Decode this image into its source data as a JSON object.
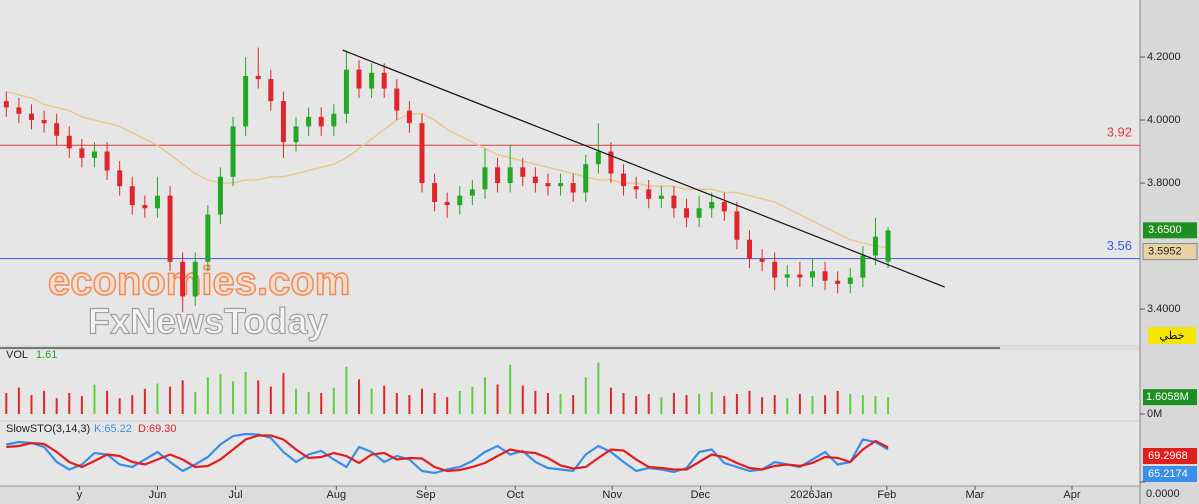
{
  "chart_data": [
    {
      "type": "candlestick",
      "watermark": [
        "economies.com",
        "FxNewsToday"
      ],
      "badge": "خطي",
      "up_color": "#22a822",
      "down_color": "#e0242a",
      "open": [
        4.06,
        4.04,
        4.02,
        4.0,
        3.99,
        3.95,
        3.91,
        3.88,
        3.9,
        3.84,
        3.79,
        3.73,
        3.72,
        3.76,
        3.55,
        3.44,
        3.55,
        3.7,
        3.82,
        3.98,
        4.14,
        4.13,
        4.06,
        3.93,
        3.98,
        4.01,
        3.98,
        4.02,
        4.16,
        4.1,
        4.15,
        4.1,
        4.03,
        3.99,
        3.8,
        3.74,
        3.73,
        3.76,
        3.78,
        3.85,
        3.8,
        3.85,
        3.82,
        3.8,
        3.79,
        3.8,
        3.77,
        3.86,
        3.9,
        3.83,
        3.79,
        3.78,
        3.75,
        3.76,
        3.72,
        3.69,
        3.72,
        3.74,
        3.71,
        3.62,
        3.56,
        3.55,
        3.5,
        3.51,
        3.5,
        3.52,
        3.49,
        3.48,
        3.5,
        3.57,
        3.55
      ],
      "high": [
        4.09,
        4.07,
        4.05,
        4.03,
        4.02,
        3.98,
        3.94,
        3.93,
        3.93,
        3.87,
        3.82,
        3.76,
        3.82,
        3.79,
        3.58,
        3.58,
        3.73,
        3.85,
        4.01,
        4.2,
        4.23,
        4.16,
        4.09,
        4.01,
        4.04,
        4.04,
        4.05,
        4.22,
        4.19,
        4.18,
        4.18,
        4.13,
        4.06,
        4.02,
        3.83,
        3.77,
        3.79,
        3.81,
        3.91,
        3.88,
        3.92,
        3.88,
        3.85,
        3.83,
        3.83,
        3.83,
        3.89,
        3.99,
        3.93,
        3.86,
        3.82,
        3.81,
        3.79,
        3.79,
        3.75,
        3.76,
        3.77,
        3.77,
        3.74,
        3.65,
        3.59,
        3.58,
        3.54,
        3.55,
        3.56,
        3.55,
        3.52,
        3.53,
        3.6,
        3.69,
        3.66
      ],
      "low": [
        4.01,
        3.99,
        3.97,
        3.96,
        3.92,
        3.88,
        3.85,
        3.85,
        3.81,
        3.76,
        3.7,
        3.69,
        3.69,
        3.52,
        3.39,
        3.41,
        3.52,
        3.67,
        3.79,
        3.95,
        4.1,
        4.03,
        3.88,
        3.9,
        3.95,
        3.95,
        3.95,
        3.99,
        4.07,
        4.07,
        4.07,
        4.0,
        3.96,
        3.77,
        3.71,
        3.69,
        3.7,
        3.73,
        3.75,
        3.77,
        3.77,
        3.79,
        3.77,
        3.76,
        3.76,
        3.74,
        3.74,
        3.83,
        3.8,
        3.76,
        3.75,
        3.72,
        3.72,
        3.69,
        3.66,
        3.66,
        3.69,
        3.68,
        3.59,
        3.53,
        3.52,
        3.46,
        3.47,
        3.47,
        3.47,
        3.46,
        3.45,
        3.45,
        3.47,
        3.54,
        3.53
      ],
      "close": [
        4.04,
        4.02,
        4.0,
        3.99,
        3.95,
        3.91,
        3.88,
        3.9,
        3.84,
        3.79,
        3.73,
        3.72,
        3.76,
        3.55,
        3.44,
        3.55,
        3.7,
        3.82,
        3.98,
        4.14,
        4.13,
        4.06,
        3.93,
        3.98,
        4.01,
        3.98,
        4.02,
        4.16,
        4.1,
        4.15,
        4.1,
        4.03,
        3.99,
        3.8,
        3.74,
        3.73,
        3.76,
        3.78,
        3.85,
        3.8,
        3.85,
        3.82,
        3.8,
        3.79,
        3.8,
        3.77,
        3.86,
        3.9,
        3.83,
        3.79,
        3.78,
        3.75,
        3.76,
        3.72,
        3.69,
        3.72,
        3.74,
        3.71,
        3.62,
        3.56,
        3.55,
        3.5,
        3.51,
        3.5,
        3.52,
        3.49,
        3.48,
        3.5,
        3.57,
        3.63,
        3.65
      ],
      "last_label": "3.6500",
      "ma": {
        "color": "#e8c88e",
        "values": [
          4.09,
          4.08,
          4.07,
          4.05,
          4.04,
          4.03,
          4.01,
          4.0,
          3.99,
          3.98,
          3.96,
          3.94,
          3.92,
          3.89,
          3.86,
          3.83,
          3.81,
          3.8,
          3.8,
          3.81,
          3.81,
          3.82,
          3.82,
          3.83,
          3.84,
          3.85,
          3.86,
          3.88,
          3.91,
          3.94,
          3.97,
          4.0,
          4.02,
          4.02,
          4.0,
          3.97,
          3.95,
          3.93,
          3.91,
          3.89,
          3.88,
          3.87,
          3.86,
          3.85,
          3.84,
          3.83,
          3.82,
          3.81,
          3.81,
          3.8,
          3.8,
          3.79,
          3.79,
          3.79,
          3.78,
          3.78,
          3.78,
          3.77,
          3.77,
          3.76,
          3.75,
          3.74,
          3.72,
          3.7,
          3.68,
          3.66,
          3.64,
          3.62,
          3.61,
          3.6,
          3.5952
        ]
      },
      "trendline": {
        "color": "#111111",
        "x": [
          27.2,
          75.0
        ],
        "y": [
          4.222,
          3.47
        ]
      },
      "hlines": [
        {
          "value": 3.92,
          "color": "#e03a3a"
        },
        {
          "value": 3.56,
          "color": "#3a5ae0"
        }
      ],
      "xlim": [
        0,
        90.5
      ],
      "xticks": [
        {
          "value": 6.3,
          "label": "y"
        },
        {
          "value": 12.5,
          "label": "Jun"
        },
        {
          "value": 18.7,
          "label": "Jul"
        },
        {
          "value": 26.7,
          "label": "Aug"
        },
        {
          "value": 33.8,
          "label": "Sep"
        },
        {
          "value": 40.9,
          "label": "Oct"
        },
        {
          "value": 48.6,
          "label": "Nov"
        },
        {
          "value": 55.6,
          "label": "Dec"
        },
        {
          "value": 64.4,
          "label": "2026Jan"
        },
        {
          "value": 70.4,
          "label": "Feb"
        },
        {
          "value": 77.4,
          "label": "Mar"
        },
        {
          "value": 85.1,
          "label": "Apr"
        }
      ],
      "ylim": [
        3.286,
        4.381
      ],
      "yticks": [
        {
          "value": 4.2,
          "label": "4.2000"
        },
        {
          "value": 4.0,
          "label": "4.0000"
        },
        {
          "value": 3.8,
          "label": "3.8000"
        },
        {
          "value": 3.4,
          "label": "3.4000"
        }
      ]
    },
    {
      "type": "bar",
      "title": "VOL",
      "title_value": "1.61",
      "values": [
        2.0,
        2.5,
        1.8,
        2.2,
        1.5,
        2.0,
        1.7,
        2.8,
        2.2,
        1.5,
        1.8,
        2.4,
        2.9,
        2.6,
        3.2,
        2.1,
        3.5,
        3.8,
        3.1,
        4.0,
        3.2,
        2.6,
        3.9,
        2.4,
        2.1,
        2.0,
        2.5,
        4.5,
        3.3,
        2.4,
        2.7,
        2.0,
        1.8,
        2.4,
        2.0,
        1.6,
        2.2,
        2.6,
        3.5,
        2.8,
        4.7,
        2.7,
        2.2,
        2.0,
        1.9,
        1.8,
        3.5,
        4.9,
        2.5,
        2.0,
        1.7,
        1.9,
        1.6,
        2.0,
        1.8,
        1.9,
        2.1,
        1.7,
        1.9,
        2.2,
        1.6,
        1.8,
        1.5,
        1.9,
        1.7,
        1.8,
        2.2,
        1.9,
        1.8,
        1.7,
        1.6058
      ],
      "last_label": "1.6058M",
      "ylim": [
        0,
        5.9
      ],
      "yticks": [
        {
          "value": 0,
          "label": "0M"
        }
      ]
    },
    {
      "type": "line",
      "title": "SlowSTO(3,14,3)",
      "series": [
        {
          "name": "K:65.22",
          "color": "#3a8ee8",
          "values": [
            75,
            80,
            78,
            70,
            40,
            25,
            35,
            58,
            55,
            35,
            30,
            45,
            60,
            40,
            22,
            35,
            50,
            75,
            92,
            96,
            95,
            88,
            60,
            40,
            55,
            62,
            45,
            30,
            70,
            60,
            40,
            52,
            45,
            22,
            18,
            25,
            30,
            42,
            60,
            72,
            55,
            62,
            40,
            28,
            25,
            22,
            55,
            72,
            60,
            40,
            22,
            28,
            25,
            20,
            28,
            60,
            65,
            38,
            30,
            22,
            25,
            40,
            35,
            30,
            45,
            60,
            35,
            40,
            85,
            80,
            65.2174
          ]
        },
        {
          "name": "D:69.30",
          "color": "#e01e1e",
          "values": [
            70,
            72,
            78,
            76,
            60,
            40,
            30,
            42,
            55,
            52,
            40,
            35,
            45,
            55,
            45,
            30,
            32,
            45,
            65,
            85,
            93,
            93,
            85,
            65,
            48,
            50,
            58,
            52,
            38,
            55,
            58,
            45,
            48,
            47,
            30,
            22,
            24,
            30,
            38,
            52,
            65,
            60,
            58,
            48,
            33,
            27,
            30,
            48,
            65,
            63,
            45,
            30,
            28,
            25,
            25,
            40,
            55,
            50,
            38,
            28,
            25,
            32,
            35,
            32,
            38,
            50,
            48,
            40,
            65,
            82,
            69.2968
          ]
        }
      ],
      "ylim": [
        0,
        100
      ],
      "yticks": [
        {
          "value": 0,
          "label": "0.0000"
        }
      ]
    }
  ]
}
